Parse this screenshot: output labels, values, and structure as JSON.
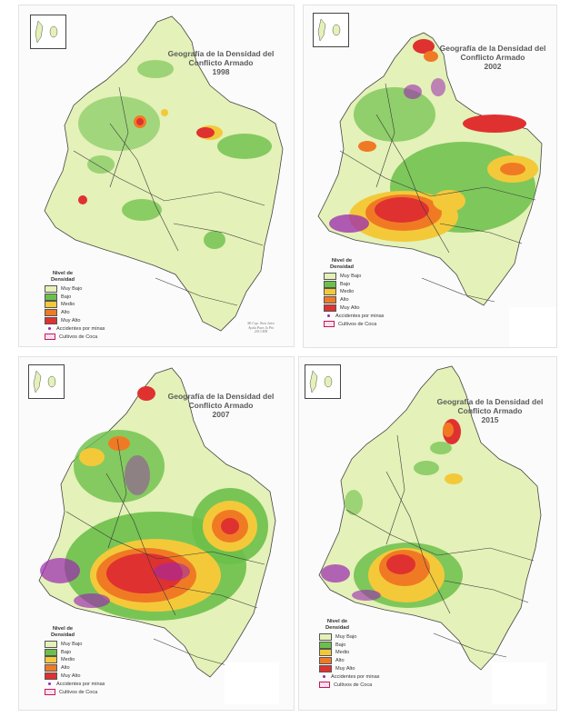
{
  "colors": {
    "muy_bajo": "#e4f1b8",
    "bajo": "#6cc04a",
    "medio": "#f3c93a",
    "alto": "#f07a24",
    "muy_alto": "#e03131",
    "mines": "#9b27b0",
    "coca": "#e57fc0"
  },
  "legend": {
    "title": "Nivel de Densidad",
    "levels": [
      "Muy Bajo",
      "Bajo",
      "Medio",
      "Alto",
      "Muy Alto"
    ],
    "mines_label": "Accidentes por minas",
    "coca_label": "Cultivos de Coca"
  },
  "panels": [
    {
      "title": "Geografía de la Densidad del Conflicto Armado",
      "year": "1998",
      "credit": "Mi Cap. Jhon Jairo Ayala Paez Ju Pin 2013 MII"
    },
    {
      "title": "Geografía de la Densidad del Conflicto Armado",
      "year": "2002"
    },
    {
      "title": "Geografía de la Densidad del Conflicto Armado",
      "year": "2007"
    },
    {
      "title": "Geografía de la Densidad del Conflicto Armado",
      "year": "2015"
    }
  ]
}
